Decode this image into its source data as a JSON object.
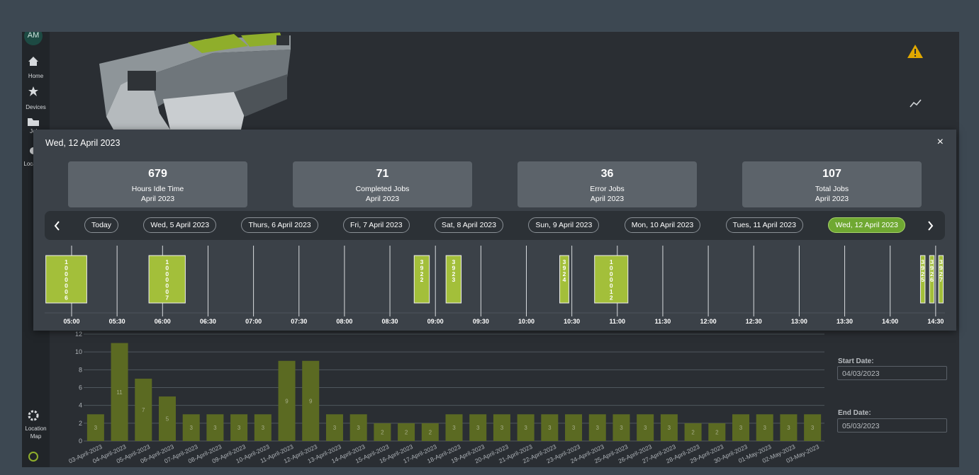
{
  "sidebar": {
    "avatar": "AM",
    "nav": [
      "Home",
      "Devices",
      "Jobs",
      "Locations"
    ],
    "bottom": "Location Map"
  },
  "modal": {
    "title": "Wed, 12 April 2023",
    "close": "×",
    "stats": [
      {
        "value": 679,
        "label": "Hours Idle Time",
        "period": "April 2023"
      },
      {
        "value": 71,
        "label": "Completed Jobs",
        "period": "April 2023"
      },
      {
        "value": 36,
        "label": "Error Jobs",
        "period": "April 2023"
      },
      {
        "value": 107,
        "label": "Total Jobs",
        "period": "April 2023"
      }
    ],
    "days": {
      "items": [
        "Today",
        "Wed, 5 April 2023",
        "Thurs, 6 April 2023",
        "Fri, 7 April 2023",
        "Sat, 8 April 2023",
        "Sun, 9 April 2023",
        "Mon, 10 April 2023",
        "Tues, 11 April 2023",
        "Wed, 12 April 2023"
      ],
      "selected": 8
    },
    "timeline": {
      "ticks": [
        "05:00",
        "05:30",
        "06:00",
        "06:30",
        "07:00",
        "07:30",
        "08:00",
        "08:30",
        "09:00",
        "09:30",
        "10:00",
        "10:30",
        "11:00",
        "11:30",
        "12:00",
        "12:30",
        "13:00",
        "13:30",
        "14:00",
        "14:30"
      ],
      "jobs": [
        {
          "id": "1000006",
          "start": "04:43",
          "end": "05:10"
        },
        {
          "id": "1000007",
          "start": "05:51",
          "end": "06:15"
        },
        {
          "id": "3922",
          "start": "08:46",
          "end": "08:56"
        },
        {
          "id": "3923",
          "start": "09:07",
          "end": "09:17"
        },
        {
          "id": "3924",
          "start": "10:22",
          "end": "10:28"
        },
        {
          "id": "1000012",
          "start": "10:45",
          "end": "11:07"
        },
        {
          "id": "3925",
          "start": "14:20",
          "end": "14:23"
        },
        {
          "id": "3926",
          "start": "14:26",
          "end": "14:29"
        },
        {
          "id": "3927",
          "start": "14:32",
          "end": "14:35"
        }
      ]
    }
  },
  "chart_data": {
    "type": "bar",
    "categories": [
      "03-April-2023",
      "04-April-2023",
      "05-April-2023",
      "06-April-2023",
      "07-April-2023",
      "08-April-2023",
      "09-April-2023",
      "10-April-2023",
      "11-April-2023",
      "12-April-2023",
      "13-April-2023",
      "14-April-2023",
      "15-April-2023",
      "16-April-2023",
      "17-April-2023",
      "18-April-2023",
      "19-April-2023",
      "20-April-2023",
      "21-April-2023",
      "22-April-2023",
      "23-April-2023",
      "24-April-2023",
      "25-April-2023",
      "26-April-2023",
      "27-April-2023",
      "28-April-2023",
      "29-April-2023",
      "30-April-2023",
      "01-May-2023",
      "02-May-2023",
      "03-May-2023"
    ],
    "values": [
      3,
      11,
      7,
      5,
      3,
      3,
      3,
      3,
      9,
      9,
      3,
      3,
      2,
      2,
      2,
      3,
      3,
      3,
      3,
      3,
      3,
      3,
      3,
      3,
      3,
      2,
      2,
      3,
      3,
      3,
      3
    ],
    "color": "#5b6a22",
    "ylim": [
      0,
      12
    ],
    "yticks": [
      0,
      2,
      4,
      6,
      8,
      10,
      12
    ],
    "grid": true
  },
  "filters": {
    "start_label": "Start Date:",
    "start_value": "04/03/2023",
    "end_label": "End Date:",
    "end_value": "05/03/2023"
  }
}
